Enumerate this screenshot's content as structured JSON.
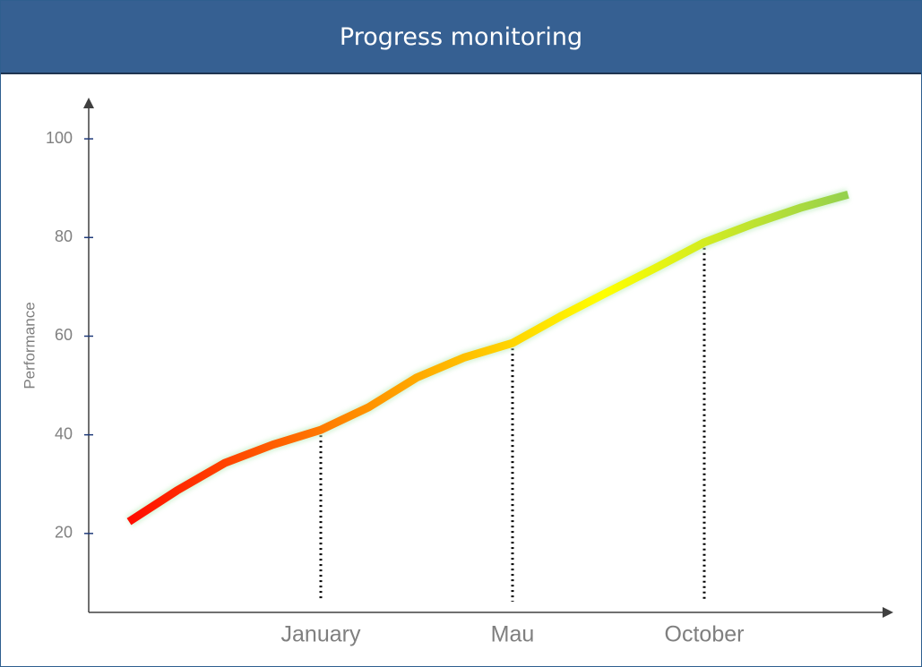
{
  "chart_data": {
    "type": "line",
    "title": "Progress monitoring",
    "ylabel": "Performance",
    "categories": [
      null,
      null,
      null,
      null,
      "January",
      null,
      null,
      null,
      "Mau",
      null,
      null,
      null,
      "October",
      null,
      null,
      null
    ],
    "values": [
      22.4,
      28.7,
      34.3,
      38,
      41,
      45.6,
      51.6,
      55.7,
      58.6,
      64,
      69,
      73.9,
      79,
      82.7,
      86,
      88.7
    ],
    "gradient": [
      "#ff0000",
      "#ff8c00",
      "#ffff00",
      "#92d050"
    ],
    "ylim": [
      4,
      108
    ],
    "yticks": [
      20,
      40,
      60,
      80,
      100
    ],
    "drop_lines": true
  }
}
